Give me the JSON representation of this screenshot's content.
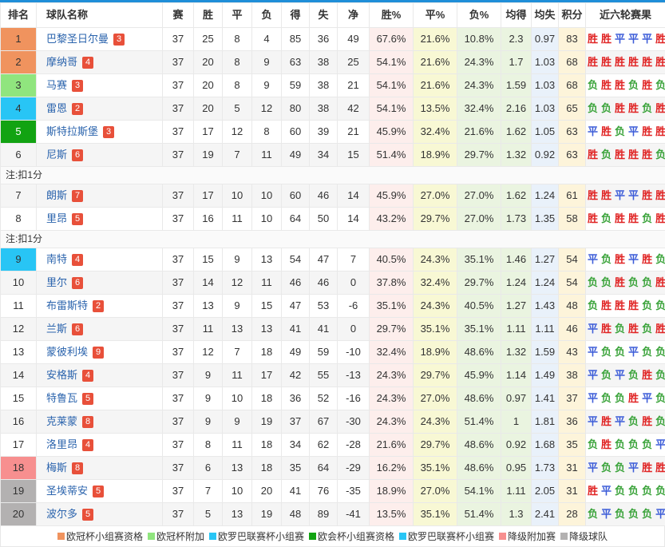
{
  "table": {
    "columns": [
      "排名",
      "球队名称",
      "赛",
      "胜",
      "平",
      "负",
      "得",
      "失",
      "净",
      "胜%",
      "平%",
      "负%",
      "均得",
      "均失",
      "积分",
      "近六轮赛果"
    ],
    "rows": [
      {
        "rank": "1",
        "zone": "ucl_group",
        "team": "巴黎圣日尔曼",
        "badge": "3",
        "played": "37",
        "win": "25",
        "draw": "8",
        "loss": "4",
        "gf": "85",
        "ga": "36",
        "gd": "49",
        "win_pct": "67.6%",
        "draw_pct": "21.6%",
        "loss_pct": "10.8%",
        "avg_gf": "2.3",
        "avg_ga": "0.97",
        "points": "83",
        "last6": [
          "胜",
          "胜",
          "平",
          "平",
          "平",
          "胜"
        ]
      },
      {
        "rank": "2",
        "zone": "ucl_group",
        "team": "摩纳哥",
        "badge": "4",
        "played": "37",
        "win": "20",
        "draw": "8",
        "loss": "9",
        "gf": "63",
        "ga": "38",
        "gd": "25",
        "win_pct": "54.1%",
        "draw_pct": "21.6%",
        "loss_pct": "24.3%",
        "avg_gf": "1.7",
        "avg_ga": "1.03",
        "points": "68",
        "last6": [
          "胜",
          "胜",
          "胜",
          "胜",
          "胜",
          "胜"
        ]
      },
      {
        "rank": "3",
        "zone": "ucl_playoff",
        "team": "马赛",
        "badge": "3",
        "played": "37",
        "win": "20",
        "draw": "8",
        "loss": "9",
        "gf": "59",
        "ga": "38",
        "gd": "21",
        "win_pct": "54.1%",
        "draw_pct": "21.6%",
        "loss_pct": "24.3%",
        "avg_gf": "1.59",
        "avg_ga": "1.03",
        "points": "68",
        "last6": [
          "负",
          "胜",
          "胜",
          "负",
          "胜",
          "负"
        ]
      },
      {
        "rank": "4",
        "zone": "uel_group",
        "team": "雷恩",
        "badge": "2",
        "played": "37",
        "win": "20",
        "draw": "5",
        "loss": "12",
        "gf": "80",
        "ga": "38",
        "gd": "42",
        "win_pct": "54.1%",
        "draw_pct": "13.5%",
        "loss_pct": "32.4%",
        "avg_gf": "2.16",
        "avg_ga": "1.03",
        "points": "65",
        "last6": [
          "负",
          "负",
          "胜",
          "胜",
          "负",
          "胜"
        ]
      },
      {
        "rank": "5",
        "zone": "uecl_group",
        "team": "斯特拉斯堡",
        "badge": "3",
        "played": "37",
        "win": "17",
        "draw": "12",
        "loss": "8",
        "gf": "60",
        "ga": "39",
        "gd": "21",
        "win_pct": "45.9%",
        "draw_pct": "32.4%",
        "loss_pct": "21.6%",
        "avg_gf": "1.62",
        "avg_ga": "1.05",
        "points": "63",
        "last6": [
          "平",
          "胜",
          "负",
          "平",
          "胜",
          "胜"
        ]
      },
      {
        "rank": "6",
        "zone": "none",
        "team": "尼斯",
        "badge": "6",
        "played": "37",
        "win": "19",
        "draw": "7",
        "loss": "11",
        "gf": "49",
        "ga": "34",
        "gd": "15",
        "win_pct": "51.4%",
        "draw_pct": "18.9%",
        "loss_pct": "29.7%",
        "avg_gf": "1.32",
        "avg_ga": "0.92",
        "points": "63",
        "last6": [
          "胜",
          "负",
          "胜",
          "胜",
          "胜",
          "负"
        ]
      },
      {
        "note": "注:扣1分"
      },
      {
        "rank": "7",
        "zone": "none",
        "team": "朗斯",
        "badge": "7",
        "played": "37",
        "win": "17",
        "draw": "10",
        "loss": "10",
        "gf": "60",
        "ga": "46",
        "gd": "14",
        "win_pct": "45.9%",
        "draw_pct": "27.0%",
        "loss_pct": "27.0%",
        "avg_gf": "1.62",
        "avg_ga": "1.24",
        "points": "61",
        "last6": [
          "胜",
          "胜",
          "平",
          "平",
          "胜",
          "胜"
        ]
      },
      {
        "rank": "8",
        "zone": "none",
        "team": "里昂",
        "badge": "5",
        "played": "37",
        "win": "16",
        "draw": "11",
        "loss": "10",
        "gf": "64",
        "ga": "50",
        "gd": "14",
        "win_pct": "43.2%",
        "draw_pct": "29.7%",
        "loss_pct": "27.0%",
        "avg_gf": "1.73",
        "avg_ga": "1.35",
        "points": "58",
        "last6": [
          "胜",
          "负",
          "胜",
          "胜",
          "负",
          "胜"
        ]
      },
      {
        "note": "注:扣1分"
      },
      {
        "rank": "9",
        "zone": "uel_group",
        "team": "南特",
        "badge": "4",
        "played": "37",
        "win": "15",
        "draw": "9",
        "loss": "13",
        "gf": "54",
        "ga": "47",
        "gd": "7",
        "win_pct": "40.5%",
        "draw_pct": "24.3%",
        "loss_pct": "35.1%",
        "avg_gf": "1.46",
        "avg_ga": "1.27",
        "points": "54",
        "last6": [
          "平",
          "负",
          "胜",
          "平",
          "胜",
          "负"
        ]
      },
      {
        "rank": "10",
        "zone": "none",
        "team": "里尔",
        "badge": "6",
        "played": "37",
        "win": "14",
        "draw": "12",
        "loss": "11",
        "gf": "46",
        "ga": "46",
        "gd": "0",
        "win_pct": "37.8%",
        "draw_pct": "32.4%",
        "loss_pct": "29.7%",
        "avg_gf": "1.24",
        "avg_ga": "1.24",
        "points": "54",
        "last6": [
          "负",
          "负",
          "胜",
          "负",
          "负",
          "胜"
        ]
      },
      {
        "rank": "11",
        "zone": "none",
        "team": "布雷斯特",
        "badge": "2",
        "played": "37",
        "win": "13",
        "draw": "9",
        "loss": "15",
        "gf": "47",
        "ga": "53",
        "gd": "-6",
        "win_pct": "35.1%",
        "draw_pct": "24.3%",
        "loss_pct": "40.5%",
        "avg_gf": "1.27",
        "avg_ga": "1.43",
        "points": "48",
        "last6": [
          "负",
          "胜",
          "胜",
          "胜",
          "负",
          "负"
        ]
      },
      {
        "rank": "12",
        "zone": "none",
        "team": "兰斯",
        "badge": "6",
        "played": "37",
        "win": "11",
        "draw": "13",
        "loss": "13",
        "gf": "41",
        "ga": "41",
        "gd": "0",
        "win_pct": "29.7%",
        "draw_pct": "35.1%",
        "loss_pct": "35.1%",
        "avg_gf": "1.11",
        "avg_ga": "1.11",
        "points": "46",
        "last6": [
          "平",
          "胜",
          "负",
          "胜",
          "负",
          "胜"
        ]
      },
      {
        "rank": "13",
        "zone": "none",
        "team": "蒙彼利埃",
        "badge": "9",
        "played": "37",
        "win": "12",
        "draw": "7",
        "loss": "18",
        "gf": "49",
        "ga": "59",
        "gd": "-10",
        "win_pct": "32.4%",
        "draw_pct": "18.9%",
        "loss_pct": "48.6%",
        "avg_gf": "1.32",
        "avg_ga": "1.59",
        "points": "43",
        "last6": [
          "平",
          "负",
          "负",
          "平",
          "负",
          "负"
        ]
      },
      {
        "rank": "14",
        "zone": "none",
        "team": "安格斯",
        "badge": "4",
        "played": "37",
        "win": "9",
        "draw": "11",
        "loss": "17",
        "gf": "42",
        "ga": "55",
        "gd": "-13",
        "win_pct": "24.3%",
        "draw_pct": "29.7%",
        "loss_pct": "45.9%",
        "avg_gf": "1.14",
        "avg_ga": "1.49",
        "points": "38",
        "last6": [
          "平",
          "负",
          "平",
          "负",
          "胜",
          "负"
        ]
      },
      {
        "rank": "15",
        "zone": "none",
        "team": "特鲁瓦",
        "badge": "5",
        "played": "37",
        "win": "9",
        "draw": "10",
        "loss": "18",
        "gf": "36",
        "ga": "52",
        "gd": "-16",
        "win_pct": "24.3%",
        "draw_pct": "27.0%",
        "loss_pct": "48.6%",
        "avg_gf": "0.97",
        "avg_ga": "1.41",
        "points": "37",
        "last6": [
          "平",
          "负",
          "负",
          "胜",
          "平",
          "负"
        ]
      },
      {
        "rank": "16",
        "zone": "none",
        "team": "克莱蒙",
        "badge": "8",
        "played": "37",
        "win": "9",
        "draw": "9",
        "loss": "19",
        "gf": "37",
        "ga": "67",
        "gd": "-30",
        "win_pct": "24.3%",
        "draw_pct": "24.3%",
        "loss_pct": "51.4%",
        "avg_gf": "1",
        "avg_ga": "1.81",
        "points": "36",
        "last6": [
          "平",
          "胜",
          "平",
          "负",
          "胜",
          "负"
        ]
      },
      {
        "rank": "17",
        "zone": "none",
        "team": "洛里昂",
        "badge": "4",
        "played": "37",
        "win": "8",
        "draw": "11",
        "loss": "18",
        "gf": "34",
        "ga": "62",
        "gd": "-28",
        "win_pct": "21.6%",
        "draw_pct": "29.7%",
        "loss_pct": "48.6%",
        "avg_gf": "0.92",
        "avg_ga": "1.68",
        "points": "35",
        "last6": [
          "负",
          "胜",
          "负",
          "负",
          "负",
          "平"
        ]
      },
      {
        "rank": "18",
        "zone": "releg_playoff",
        "team": "梅斯",
        "badge": "8",
        "played": "37",
        "win": "6",
        "draw": "13",
        "loss": "18",
        "gf": "35",
        "ga": "64",
        "gd": "-29",
        "win_pct": "16.2%",
        "draw_pct": "35.1%",
        "loss_pct": "48.6%",
        "avg_gf": "0.95",
        "avg_ga": "1.73",
        "points": "31",
        "last6": [
          "平",
          "负",
          "负",
          "平",
          "胜",
          "胜"
        ]
      },
      {
        "rank": "19",
        "zone": "relegated",
        "team": "圣埃蒂安",
        "badge": "5",
        "played": "37",
        "win": "7",
        "draw": "10",
        "loss": "20",
        "gf": "41",
        "ga": "76",
        "gd": "-35",
        "win_pct": "18.9%",
        "draw_pct": "27.0%",
        "loss_pct": "54.1%",
        "avg_gf": "1.11",
        "avg_ga": "2.05",
        "points": "31",
        "last6": [
          "胜",
          "平",
          "负",
          "负",
          "负",
          "负"
        ]
      },
      {
        "rank": "20",
        "zone": "relegated",
        "team": "波尔多",
        "badge": "5",
        "played": "37",
        "win": "5",
        "draw": "13",
        "loss": "19",
        "gf": "48",
        "ga": "89",
        "gd": "-41",
        "win_pct": "13.5%",
        "draw_pct": "35.1%",
        "loss_pct": "51.4%",
        "avg_gf": "1.3",
        "avg_ga": "2.41",
        "points": "28",
        "last6": [
          "负",
          "平",
          "负",
          "负",
          "负",
          "平"
        ]
      }
    ]
  },
  "zone_colors": {
    "ucl_group": "#f0935e",
    "ucl_playoff": "#90e57e",
    "uel_group": "#28c5f5",
    "uecl_group": "#12a312",
    "releg_playoff": "#f78f8f",
    "relegated": "#b3b1b1",
    "none": ""
  },
  "result_colors": {
    "胜": "#e02222",
    "平": "#3c5cd8",
    "负": "#3aa33a"
  },
  "colors": {
    "top_border": "#1f8ed8",
    "team_link": "#2b64ad",
    "badge_bg": "#e8503a",
    "win_pct_bg": "#fdeeec",
    "draw_pct_bg": "#f8f8d4",
    "loss_pct_bg": "#eaf4e0",
    "avg_gf_bg": "#eaf4e0",
    "avg_ga_bg": "#e9f1fa",
    "points_bg": "#fdf4da"
  },
  "legend": [
    {
      "label": "欧冠杯小组赛资格",
      "color": "#f0935e"
    },
    {
      "label": "欧冠杯附加",
      "color": "#90e57e"
    },
    {
      "label": "欧罗巴联赛杯小组赛",
      "color": "#28c5f5"
    },
    {
      "label": "欧会杯小组赛资格",
      "color": "#12a312"
    },
    {
      "label": "欧罗巴联赛杯小组赛",
      "color": "#28c5f5"
    },
    {
      "label": "降级附加赛",
      "color": "#f78f8f"
    },
    {
      "label": "降级球队",
      "color": "#b3b1b1"
    }
  ]
}
